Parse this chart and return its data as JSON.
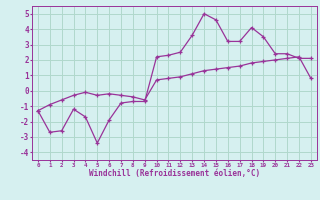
{
  "xlabel": "Windchill (Refroidissement éolien,°C)",
  "bg_color": "#d6f0f0",
  "grid_color": "#b0d8cc",
  "line_color": "#993399",
  "x_hours": [
    0,
    1,
    2,
    3,
    4,
    5,
    6,
    7,
    8,
    9,
    10,
    11,
    12,
    13,
    14,
    15,
    16,
    17,
    18,
    19,
    20,
    21,
    22,
    23
  ],
  "windchill": [
    -1.3,
    -2.7,
    -2.6,
    -1.2,
    -1.7,
    -3.4,
    -1.9,
    -0.8,
    -0.7,
    -0.7,
    2.2,
    2.3,
    2.5,
    3.6,
    5.0,
    4.6,
    3.2,
    3.2,
    4.1,
    3.5,
    2.4,
    2.4,
    2.1,
    2.1
  ],
  "temperature": [
    -1.3,
    -0.9,
    -0.6,
    -0.3,
    -0.1,
    -0.3,
    -0.2,
    -0.3,
    -0.4,
    -0.6,
    0.7,
    0.8,
    0.9,
    1.1,
    1.3,
    1.4,
    1.5,
    1.6,
    1.8,
    1.9,
    2.0,
    2.1,
    2.2,
    0.8
  ],
  "ylim": [
    -4.5,
    5.5
  ],
  "yticks": [
    -4,
    -3,
    -2,
    -1,
    0,
    1,
    2,
    3,
    4,
    5
  ],
  "xtick_labels": [
    "0",
    "1",
    "2",
    "3",
    "4",
    "5",
    "6",
    "7",
    "8",
    "9",
    "10",
    "11",
    "12",
    "13",
    "14",
    "15",
    "16",
    "17",
    "18",
    "19",
    "20",
    "21",
    "22",
    "23"
  ]
}
